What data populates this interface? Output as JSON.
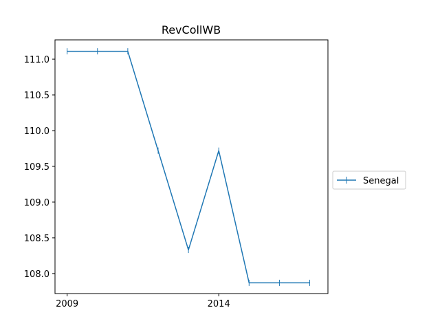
{
  "chart_data": {
    "type": "line",
    "title": "RevCollWB",
    "xlabel": "",
    "ylabel": "",
    "x": [
      2009,
      2010,
      2011,
      2012,
      2013,
      2014,
      2015,
      2016,
      2017
    ],
    "series": [
      {
        "name": "Senegal",
        "values": [
          111.11,
          111.11,
          111.11,
          109.72,
          108.33,
          109.72,
          107.87,
          107.87,
          107.87
        ],
        "color": "#1f77b4",
        "marker": "|"
      }
    ],
    "xticks": [
      2009,
      2014
    ],
    "xtick_labels": [
      "2009",
      "2014"
    ],
    "yticks": [
      108.0,
      108.5,
      109.0,
      109.5,
      110.0,
      110.5,
      111.0
    ],
    "ytick_labels": [
      "108.0",
      "108.5",
      "109.0",
      "109.5",
      "110.0",
      "110.5",
      "111.0"
    ],
    "xlim": [
      2008.6,
      2017.6
    ],
    "ylim": [
      107.72,
      111.27
    ],
    "grid": false,
    "legend_position": "center-right outside"
  }
}
